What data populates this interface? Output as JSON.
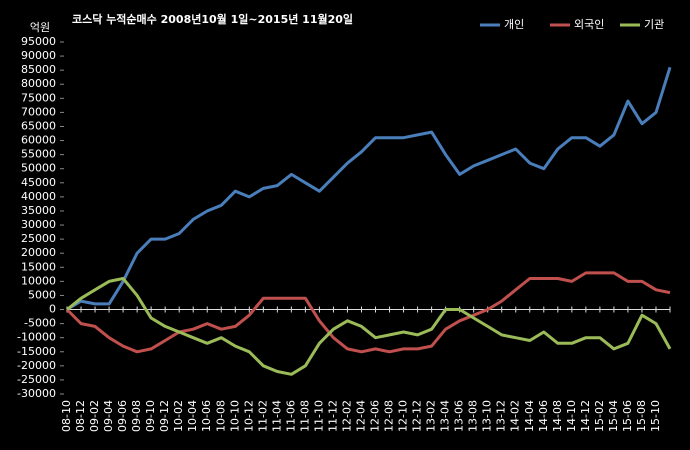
{
  "chart_data": {
    "type": "line",
    "title": "코스닥  누적순매수 2008년10월 1일~2015년 11월20일",
    "y_unit": "억원",
    "categories": [
      "08-10",
      "08-12",
      "09-02",
      "09-04",
      "09-06",
      "09-08",
      "09-10",
      "09-12",
      "10-02",
      "10-04",
      "10-06",
      "10-08",
      "10-10",
      "10-12",
      "11-02",
      "11-04",
      "11-06",
      "11-08",
      "11-10",
      "11-12",
      "12-02",
      "12-04",
      "12-06",
      "12-08",
      "12-10",
      "12-12",
      "13-02",
      "13-04",
      "13-06",
      "13-08",
      "13-10",
      "13-12",
      "14-02",
      "14-04",
      "14-06",
      "14-08",
      "14-10",
      "14-12",
      "15-02",
      "15-04",
      "15-06",
      "15-08",
      "15-10",
      null
    ],
    "series": [
      {
        "name": "개인",
        "color": "#4a7ebb",
        "values": [
          0,
          3000,
          2000,
          2000,
          10000,
          20000,
          25000,
          25000,
          27000,
          32000,
          35000,
          37000,
          42000,
          40000,
          43000,
          44000,
          48000,
          45000,
          42000,
          47000,
          52000,
          56000,
          61000,
          61000,
          61000,
          62000,
          63000,
          55000,
          48000,
          51000,
          53000,
          55000,
          57000,
          52000,
          50000,
          57000,
          61000,
          61000,
          58000,
          62000,
          74000,
          66000,
          70000,
          86000
        ]
      },
      {
        "name": "외국인",
        "color": "#c0504d",
        "values": [
          0,
          -5000,
          -6000,
          -10000,
          -13000,
          -15000,
          -14000,
          -11000,
          -8000,
          -7000,
          -5000,
          -7000,
          -6000,
          -2000,
          4000,
          4000,
          4000,
          4000,
          -4000,
          -10000,
          -14000,
          -15000,
          -14000,
          -15000,
          -14000,
          -14000,
          -13000,
          -7000,
          -4000,
          -2000,
          0,
          3000,
          7000,
          11000,
          11000,
          11000,
          10000,
          13000,
          13000,
          13000,
          10000,
          10000,
          7000,
          6000
        ]
      },
      {
        "name": "기관",
        "color": "#9bbb59",
        "values": [
          0,
          4000,
          7000,
          10000,
          11000,
          5000,
          -3000,
          -6000,
          -8000,
          -10000,
          -12000,
          -10000,
          -13000,
          -15000,
          -20000,
          -22000,
          -23000,
          -20000,
          -12000,
          -7000,
          -4000,
          -6000,
          -10000,
          -9000,
          -8000,
          -9000,
          -7000,
          0,
          0,
          -3000,
          -6000,
          -9000,
          -10000,
          -11000,
          -8000,
          -12000,
          -12000,
          -10000,
          -10000,
          -14000,
          -12000,
          -2000,
          -5000,
          -14000
        ]
      }
    ],
    "ylim": [
      -30000,
      95000
    ],
    "yticks": [
      -30000,
      -25000,
      -20000,
      -15000,
      -10000,
      -5000,
      0,
      5000,
      10000,
      15000,
      20000,
      25000,
      30000,
      35000,
      40000,
      45000,
      50000,
      55000,
      60000,
      65000,
      70000,
      75000,
      80000,
      85000,
      90000,
      95000
    ],
    "grid": false,
    "legend": "top-right"
  }
}
